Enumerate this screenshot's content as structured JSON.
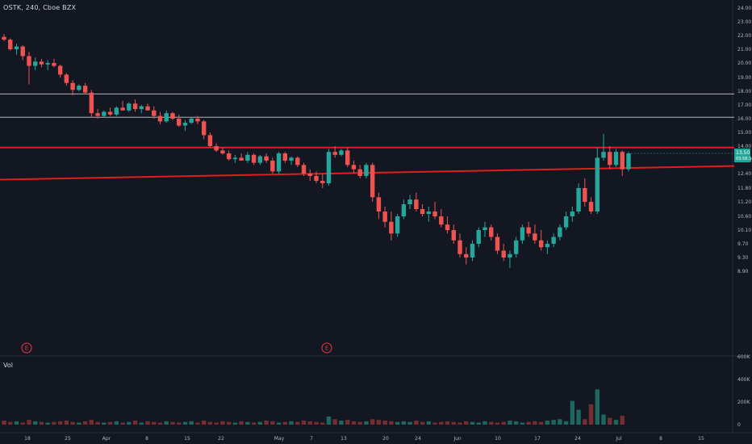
{
  "header": {
    "symbol_line": "OSTK, 240, Cboe BZX"
  },
  "volume_pane": {
    "label": "Vol"
  },
  "colors": {
    "background": "#131722",
    "up": "#26a69a",
    "down": "#ef5350",
    "trendline": "#e01e1e",
    "hline": "#b2b5be",
    "price_badge_up": "#26a69a",
    "event": "#f23645"
  },
  "chart_data": {
    "type": "candlestick",
    "price_axis": {
      "ticks": [
        "24.00",
        "23.00",
        "22.00",
        "21.00",
        "20.00",
        "19.00",
        "18.00",
        "17.00",
        "16.00",
        "15.00",
        "14.00",
        "13.00",
        "12.40",
        "11.80",
        "11.20",
        "10.60",
        "10.10",
        "9.70",
        "9.30",
        "8.90"
      ],
      "current_price": "13.50",
      "countdown": "03:56:34"
    },
    "volume_axis": {
      "ticks": [
        "600K",
        "400K",
        "200K",
        "0"
      ]
    },
    "date_axis": {
      "ticks": [
        "18",
        "25",
        "Apr",
        "8",
        "15",
        "22",
        "May",
        "7",
        "13",
        "20",
        "24",
        "Jun",
        "10",
        "17",
        "24",
        "Jul",
        "8",
        "15"
      ]
    },
    "horizontal_lines": [
      {
        "price": 17.8,
        "color": "#b2b5be"
      },
      {
        "price": 16.1,
        "color": "#b2b5be"
      },
      {
        "price": 13.9,
        "color": "#e01e1e"
      }
    ],
    "trendline": {
      "x0": 0,
      "y0": 12.15,
      "x1": 1,
      "y1": 12.75,
      "color": "#e01e1e"
    },
    "events": [
      {
        "label": "E",
        "bar_index": 4
      },
      {
        "label": "E",
        "bar_index": 61
      }
    ],
    "candles": [
      [
        21.9,
        22.1,
        21.6,
        21.7
      ],
      [
        21.7,
        21.8,
        20.9,
        21.0
      ],
      [
        21.0,
        21.4,
        20.6,
        21.2
      ],
      [
        21.2,
        21.3,
        20.2,
        20.5
      ],
      [
        20.5,
        20.8,
        18.5,
        19.8
      ],
      [
        19.8,
        20.4,
        19.5,
        20.1
      ],
      [
        20.1,
        20.3,
        19.7,
        19.9
      ],
      [
        19.9,
        20.2,
        19.5,
        20.0
      ],
      [
        20.0,
        20.3,
        19.7,
        19.8
      ],
      [
        19.8,
        19.9,
        19.0,
        19.2
      ],
      [
        19.2,
        19.3,
        18.4,
        18.6
      ],
      [
        18.6,
        18.8,
        17.7,
        18.1
      ],
      [
        18.1,
        18.5,
        18.0,
        18.4
      ],
      [
        18.4,
        18.6,
        17.8,
        17.9
      ],
      [
        17.9,
        18.1,
        16.1,
        16.4
      ],
      [
        16.4,
        16.7,
        16.0,
        16.2
      ],
      [
        16.2,
        16.6,
        16.1,
        16.5
      ],
      [
        16.5,
        16.8,
        16.2,
        16.3
      ],
      [
        16.3,
        16.9,
        16.2,
        16.8
      ],
      [
        16.8,
        17.3,
        16.6,
        16.6
      ],
      [
        16.6,
        17.2,
        16.5,
        17.1
      ],
      [
        17.1,
        17.4,
        16.5,
        16.7
      ],
      [
        16.7,
        17.0,
        16.4,
        16.9
      ],
      [
        16.9,
        17.1,
        16.6,
        16.6
      ],
      [
        16.6,
        16.9,
        16.0,
        16.2
      ],
      [
        16.2,
        16.5,
        15.6,
        15.8
      ],
      [
        15.8,
        16.6,
        15.7,
        16.4
      ],
      [
        16.4,
        16.5,
        15.9,
        16.0
      ],
      [
        16.0,
        16.3,
        15.4,
        15.5
      ],
      [
        15.5,
        15.9,
        15.1,
        15.7
      ],
      [
        15.7,
        16.1,
        15.6,
        16.0
      ],
      [
        16.0,
        16.2,
        15.6,
        15.8
      ],
      [
        15.8,
        15.9,
        14.5,
        14.8
      ],
      [
        14.8,
        15.0,
        13.9,
        14.0
      ],
      [
        14.0,
        14.2,
        13.6,
        13.7
      ],
      [
        13.7,
        13.9,
        13.4,
        13.5
      ],
      [
        13.5,
        13.7,
        13.0,
        13.1
      ],
      [
        13.1,
        13.4,
        12.9,
        13.2
      ],
      [
        13.2,
        13.5,
        13.0,
        13.0
      ],
      [
        13.0,
        13.6,
        12.9,
        13.4
      ],
      [
        13.4,
        13.5,
        12.8,
        12.9
      ],
      [
        12.9,
        13.4,
        12.8,
        13.3
      ],
      [
        13.3,
        13.5,
        12.9,
        13.0
      ],
      [
        13.0,
        13.2,
        12.4,
        12.5
      ],
      [
        12.5,
        13.6,
        12.4,
        13.5
      ],
      [
        13.5,
        13.6,
        12.9,
        13.0
      ],
      [
        13.0,
        13.3,
        12.8,
        13.2
      ],
      [
        13.2,
        13.3,
        12.7,
        12.8
      ],
      [
        12.8,
        12.9,
        12.3,
        12.4
      ],
      [
        12.4,
        12.6,
        12.1,
        12.3
      ],
      [
        12.3,
        12.5,
        12.0,
        12.1
      ],
      [
        12.1,
        12.4,
        11.8,
        12.0
      ],
      [
        12.0,
        13.8,
        11.9,
        13.6
      ],
      [
        13.6,
        14.0,
        13.2,
        13.4
      ],
      [
        13.4,
        13.8,
        13.3,
        13.7
      ],
      [
        13.7,
        13.9,
        12.7,
        12.8
      ],
      [
        12.8,
        13.0,
        12.4,
        12.6
      ],
      [
        12.6,
        12.8,
        12.2,
        12.3
      ],
      [
        12.3,
        12.9,
        12.2,
        12.8
      ],
      [
        12.8,
        12.9,
        11.2,
        11.4
      ],
      [
        11.4,
        11.6,
        10.5,
        10.8
      ],
      [
        10.8,
        11.0,
        10.2,
        10.4
      ],
      [
        10.4,
        10.8,
        9.8,
        10.0
      ],
      [
        10.0,
        10.7,
        9.9,
        10.6
      ],
      [
        10.6,
        11.3,
        10.5,
        11.1
      ],
      [
        11.1,
        11.5,
        10.9,
        11.3
      ],
      [
        11.3,
        11.6,
        10.8,
        10.9
      ],
      [
        10.9,
        11.1,
        10.6,
        10.7
      ],
      [
        10.7,
        11.0,
        10.4,
        10.8
      ],
      [
        10.8,
        11.2,
        10.5,
        10.6
      ],
      [
        10.6,
        10.9,
        10.2,
        10.3
      ],
      [
        10.3,
        10.6,
        10.0,
        10.1
      ],
      [
        10.1,
        10.3,
        9.7,
        9.8
      ],
      [
        9.8,
        10.0,
        9.3,
        9.4
      ],
      [
        9.4,
        9.6,
        9.1,
        9.3
      ],
      [
        9.3,
        9.8,
        9.2,
        9.7
      ],
      [
        9.7,
        10.2,
        9.6,
        10.1
      ],
      [
        10.1,
        10.4,
        9.9,
        10.2
      ],
      [
        10.2,
        10.3,
        9.8,
        9.9
      ],
      [
        9.9,
        10.0,
        9.4,
        9.5
      ],
      [
        9.5,
        9.7,
        9.2,
        9.3
      ],
      [
        9.3,
        9.5,
        9.0,
        9.4
      ],
      [
        9.4,
        9.9,
        9.3,
        9.8
      ],
      [
        9.8,
        10.3,
        9.7,
        10.2
      ],
      [
        10.2,
        10.4,
        9.9,
        10.0
      ],
      [
        10.0,
        10.3,
        9.7,
        9.8
      ],
      [
        9.8,
        10.1,
        9.5,
        9.6
      ],
      [
        9.6,
        9.8,
        9.4,
        9.7
      ],
      [
        9.7,
        10.0,
        9.6,
        9.9
      ],
      [
        9.9,
        10.3,
        9.8,
        10.2
      ],
      [
        10.2,
        10.8,
        10.1,
        10.6
      ],
      [
        10.6,
        11.0,
        10.4,
        10.8
      ],
      [
        10.8,
        12.0,
        10.7,
        11.8
      ],
      [
        11.8,
        12.2,
        11.0,
        11.2
      ],
      [
        11.2,
        11.4,
        10.7,
        10.8
      ],
      [
        10.8,
        13.9,
        10.7,
        13.2
      ],
      [
        13.2,
        14.9,
        13.0,
        13.6
      ],
      [
        13.6,
        14.0,
        12.6,
        12.8
      ],
      [
        12.8,
        13.8,
        12.7,
        13.6
      ],
      [
        13.6,
        13.7,
        12.3,
        12.6
      ],
      [
        12.6,
        13.6,
        12.5,
        13.5
      ]
    ],
    "volumes": [
      0.06,
      0.04,
      0.05,
      0.03,
      0.07,
      0.05,
      0.04,
      0.03,
      0.04,
      0.05,
      0.06,
      0.04,
      0.03,
      0.05,
      0.07,
      0.04,
      0.03,
      0.04,
      0.05,
      0.03,
      0.04,
      0.06,
      0.03,
      0.05,
      0.04,
      0.03,
      0.05,
      0.04,
      0.03,
      0.04,
      0.05,
      0.03,
      0.06,
      0.04,
      0.03,
      0.05,
      0.04,
      0.03,
      0.05,
      0.04,
      0.03,
      0.04,
      0.06,
      0.05,
      0.03,
      0.04,
      0.05,
      0.04,
      0.06,
      0.05,
      0.04,
      0.03,
      0.12,
      0.08,
      0.06,
      0.07,
      0.05,
      0.04,
      0.05,
      0.08,
      0.07,
      0.06,
      0.05,
      0.04,
      0.05,
      0.04,
      0.06,
      0.04,
      0.05,
      0.03,
      0.04,
      0.05,
      0.04,
      0.03,
      0.05,
      0.04,
      0.03,
      0.05,
      0.04,
      0.03,
      0.04,
      0.06,
      0.05,
      0.03,
      0.04,
      0.05,
      0.04,
      0.06,
      0.07,
      0.08,
      0.05,
      0.35,
      0.22,
      0.08,
      0.3,
      0.52,
      0.15,
      0.1,
      0.07,
      0.13
    ]
  }
}
